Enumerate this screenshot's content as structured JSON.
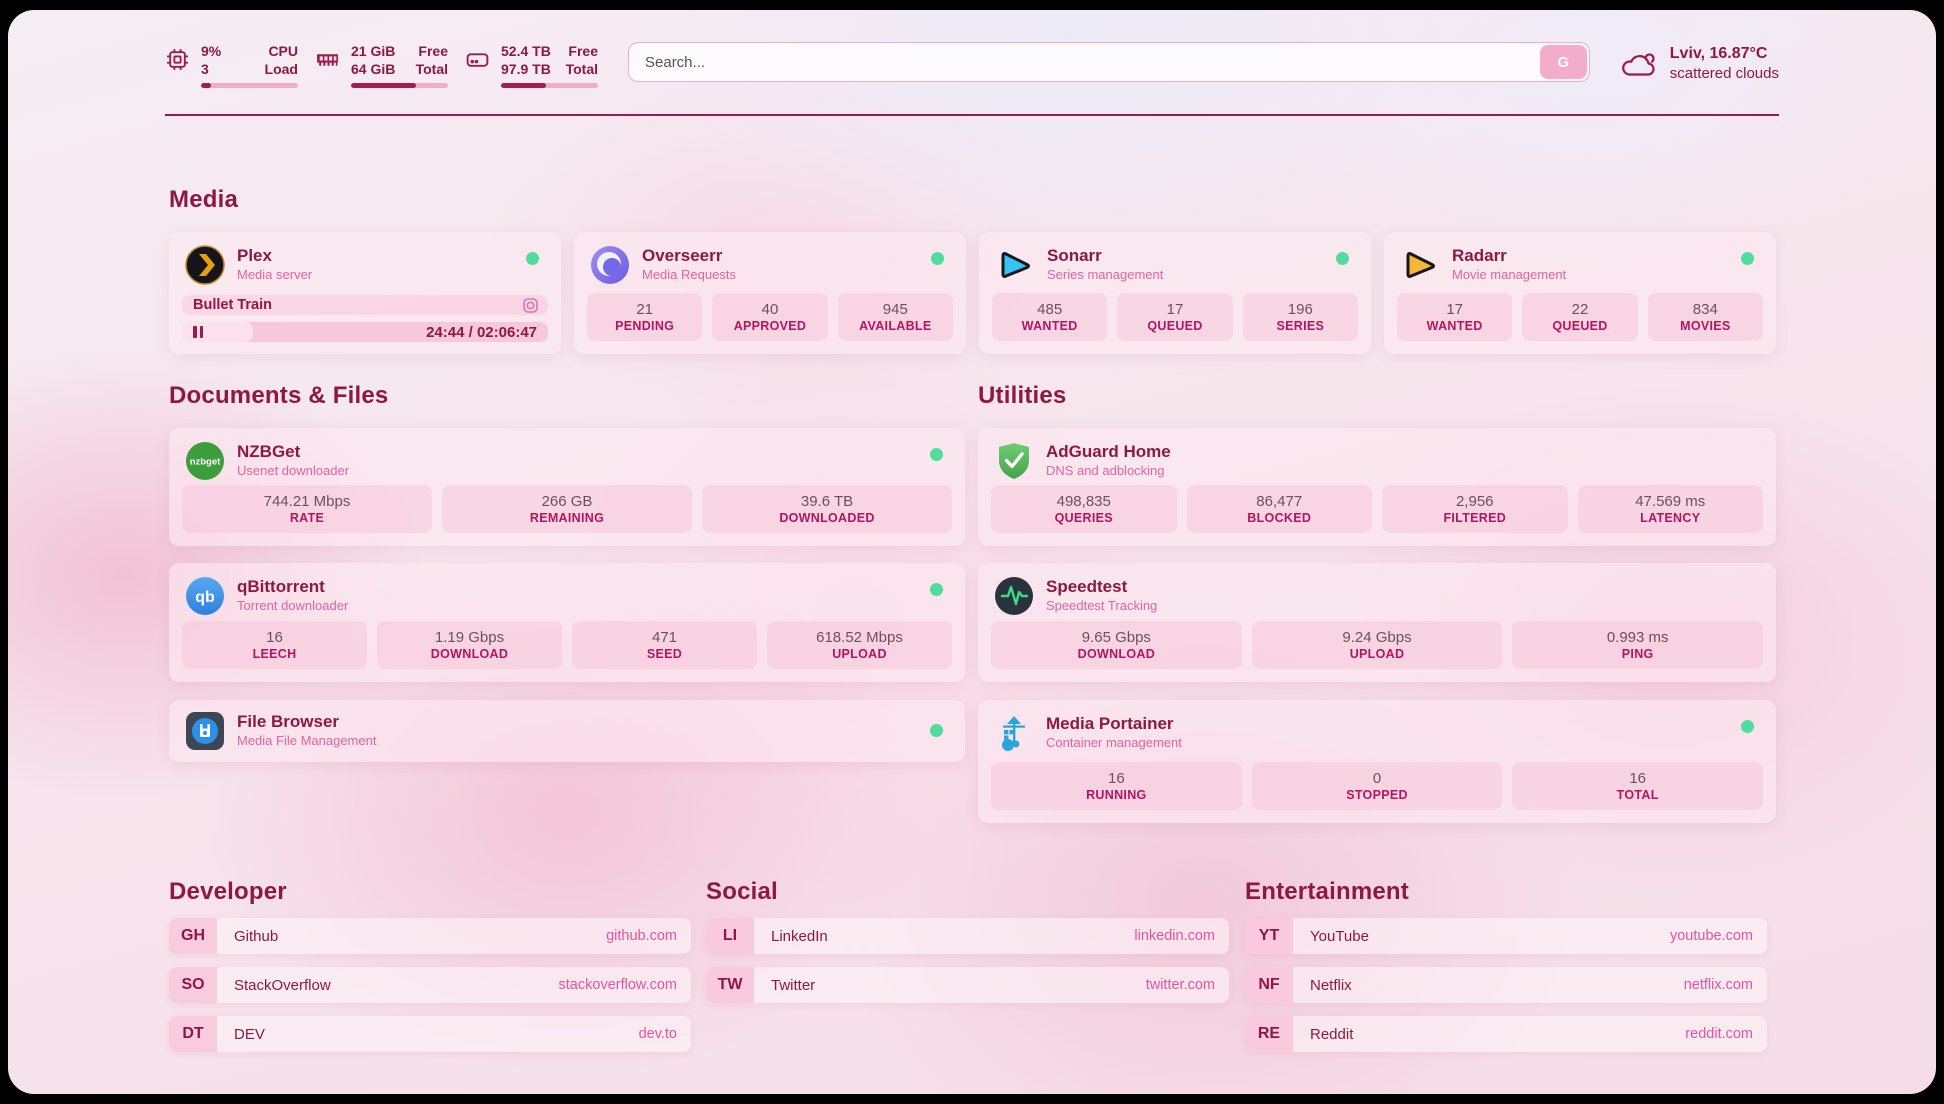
{
  "colors": {
    "accent": "#8e1843",
    "divider": "#9b1b4d",
    "status_online": "#52dc9c",
    "stat_label": "#b3165c",
    "url_pink": "#e2559c"
  },
  "topbar": {
    "widgets": [
      {
        "icon": "cpu-icon",
        "rows": [
          {
            "value": "9%",
            "label": "CPU"
          },
          {
            "value": "3",
            "label": "Load"
          }
        ],
        "progress_pct": 10
      },
      {
        "icon": "ram-icon",
        "rows": [
          {
            "value": "21 GiB",
            "label": "Free"
          },
          {
            "value": "64 GiB",
            "label": "Total"
          }
        ],
        "progress_pct": 67
      },
      {
        "icon": "disk-icon",
        "rows": [
          {
            "value": "52.4 TB",
            "label": "Free"
          },
          {
            "value": "97.9 TB",
            "label": "Total"
          }
        ],
        "progress_pct": 46
      }
    ],
    "search": {
      "placeholder": "Search...",
      "button": "G"
    },
    "weather": {
      "icon": "cloud-icon",
      "title": "Lviv, 16.87°C",
      "subtitle": "scattered clouds"
    }
  },
  "sections": {
    "media": {
      "title": "Media",
      "plex": {
        "name": "Plex",
        "subtitle": "Media server",
        "icon": "plex-icon",
        "status": "online",
        "now_playing": "Bullet Train",
        "state": "paused",
        "elapsed": "24:44",
        "separator": " / ",
        "total": "02:06:47",
        "progress_pct": 19.5
      },
      "overseerr": {
        "name": "Overseerr",
        "subtitle": "Media Requests",
        "icon": "overseerr-icon",
        "status": "online",
        "stats": [
          {
            "value": "21",
            "label": "PENDING"
          },
          {
            "value": "40",
            "label": "APPROVED"
          },
          {
            "value": "945",
            "label": "AVAILABLE"
          }
        ]
      },
      "sonarr": {
        "name": "Sonarr",
        "subtitle": "Series management",
        "icon": "sonarr-icon",
        "status": "online",
        "stats": [
          {
            "value": "485",
            "label": "WANTED"
          },
          {
            "value": "17",
            "label": "QUEUED"
          },
          {
            "value": "196",
            "label": "SERIES"
          }
        ]
      },
      "radarr": {
        "name": "Radarr",
        "subtitle": "Movie management",
        "icon": "radarr-icon",
        "status": "online",
        "stats": [
          {
            "value": "17",
            "label": "WANTED"
          },
          {
            "value": "22",
            "label": "QUEUED"
          },
          {
            "value": "834",
            "label": "MOVIES"
          }
        ]
      }
    },
    "documents": {
      "title": "Documents & Files",
      "nzbget": {
        "name": "NZBGet",
        "subtitle": "Usenet downloader",
        "icon": "nzbget-icon",
        "status": "online",
        "stats": [
          {
            "value": "744.21 Mbps",
            "label": "RATE"
          },
          {
            "value": "266 GB",
            "label": "REMAINING"
          },
          {
            "value": "39.6 TB",
            "label": "DOWNLOADED"
          }
        ]
      },
      "qbittorrent": {
        "name": "qBittorrent",
        "subtitle": "Torrent downloader",
        "icon": "qbittorrent-icon",
        "status": "online",
        "stats": [
          {
            "value": "16",
            "label": "LEECH"
          },
          {
            "value": "1.19 Gbps",
            "label": "DOWNLOAD"
          },
          {
            "value": "471",
            "label": "SEED"
          },
          {
            "value": "618.52 Mbps",
            "label": "UPLOAD"
          }
        ]
      },
      "filebrowser": {
        "name": "File Browser",
        "subtitle": "Media File Management",
        "icon": "filebrowser-icon",
        "status": "online"
      }
    },
    "utilities": {
      "title": "Utilities",
      "adguard": {
        "name": "AdGuard Home",
        "subtitle": "DNS and adblocking",
        "icon": "adguard-icon",
        "stats": [
          {
            "value": "498,835",
            "label": "QUERIES"
          },
          {
            "value": "86,477",
            "label": "BLOCKED"
          },
          {
            "value": "2,956",
            "label": "FILTERED"
          },
          {
            "value": "47.569 ms",
            "label": "LATENCY"
          }
        ]
      },
      "speedtest": {
        "name": "Speedtest",
        "subtitle": "Speedtest Tracking",
        "icon": "speedtest-icon",
        "stats": [
          {
            "value": "9.65 Gbps",
            "label": "DOWNLOAD"
          },
          {
            "value": "9.24 Gbps",
            "label": "UPLOAD"
          },
          {
            "value": "0.993 ms",
            "label": "PING"
          }
        ]
      },
      "portainer": {
        "name": "Media Portainer",
        "subtitle": "Container management",
        "icon": "portainer-icon",
        "status": "online",
        "stats": [
          {
            "value": "16",
            "label": "RUNNING"
          },
          {
            "value": "0",
            "label": "STOPPED"
          },
          {
            "value": "16",
            "label": "TOTAL"
          }
        ]
      }
    },
    "developer": {
      "title": "Developer",
      "links": [
        {
          "abbr": "GH",
          "name": "Github",
          "url": "github.com"
        },
        {
          "abbr": "SO",
          "name": "StackOverflow",
          "url": "stackoverflow.com"
        },
        {
          "abbr": "DT",
          "name": "DEV",
          "url": "dev.to"
        }
      ]
    },
    "social": {
      "title": "Social",
      "links": [
        {
          "abbr": "LI",
          "name": "LinkedIn",
          "url": "linkedin.com"
        },
        {
          "abbr": "TW",
          "name": "Twitter",
          "url": "twitter.com"
        }
      ]
    },
    "entertainment": {
      "title": "Entertainment",
      "links": [
        {
          "abbr": "YT",
          "name": "YouTube",
          "url": "youtube.com"
        },
        {
          "abbr": "NF",
          "name": "Netflix",
          "url": "netflix.com"
        },
        {
          "abbr": "RE",
          "name": "Reddit",
          "url": "reddit.com"
        }
      ]
    }
  }
}
